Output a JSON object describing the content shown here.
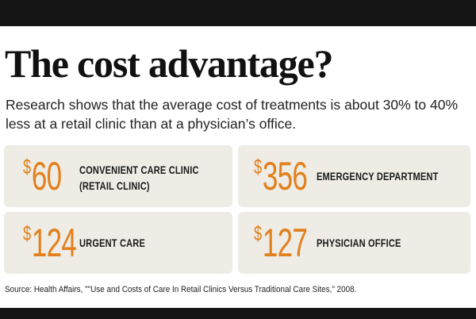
{
  "header": {
    "title": "The cost advantage?",
    "subtitle": "Research shows that the average cost of treatments is about 30% to 40% less at a retail clinic than at a physician’s office."
  },
  "colors": {
    "accent": "#e2801d",
    "card_bg": "#eeece5",
    "bar": "#151515"
  },
  "chart_data": {
    "type": "table",
    "title": "The cost advantage?",
    "subtitle": "Research shows that the average cost of treatments is about 30% to 40% less at a retail clinic than at a physician’s office.",
    "currency": "$",
    "items": [
      {
        "label_lines": [
          "CONVENIENT CARE CLINIC",
          "(RETAIL CLINIC)"
        ],
        "value": 60
      },
      {
        "label_lines": [
          "EMERGENCY DEPARTMENT"
        ],
        "value": 356
      },
      {
        "label_lines": [
          "URGENT CARE"
        ],
        "value": 124
      },
      {
        "label_lines": [
          "PHYSICIAN OFFICE"
        ],
        "value": 127
      }
    ],
    "source": "Source: Health Affairs, \"\"Use and Costs of Care In Retail Clinics Versus Traditional Care Sites,\" 2008."
  }
}
